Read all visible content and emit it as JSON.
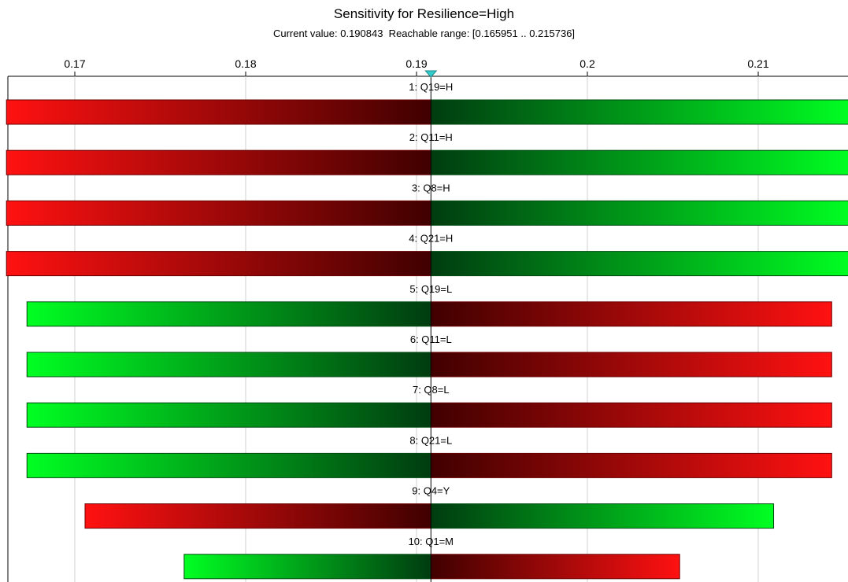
{
  "chart_data": {
    "type": "bar",
    "subtype": "tornado",
    "title": "Sensitivity for Resilience=High",
    "subtitle": "Current value: 0.190843  Reachable range: [0.165951 .. 0.215736]",
    "current_value": 0.190843,
    "reachable_range": [
      0.165951,
      0.215736
    ],
    "x_ticks": [
      "0.17",
      "0.18",
      "0.19",
      "0.2",
      "0.21"
    ],
    "xlim": [
      0.166,
      0.2155
    ],
    "grid": true,
    "colors": {
      "increase": "#00ff22",
      "decrease": "#ff1111",
      "marker": "#33cccc"
    },
    "bars": [
      {
        "label": "1: Q19=H",
        "low": 0.166,
        "high": 0.2155,
        "low_side": "decrease"
      },
      {
        "label": "2: Q11=H",
        "low": 0.166,
        "high": 0.2155,
        "low_side": "decrease"
      },
      {
        "label": "3: Q8=H",
        "low": 0.166,
        "high": 0.2155,
        "low_side": "decrease"
      },
      {
        "label": "4: Q21=H",
        "low": 0.166,
        "high": 0.2155,
        "low_side": "decrease"
      },
      {
        "label": "5: Q19=L",
        "low": 0.1672,
        "high": 0.2143,
        "low_side": "increase"
      },
      {
        "label": "6: Q11=L",
        "low": 0.1672,
        "high": 0.2143,
        "low_side": "increase"
      },
      {
        "label": "7: Q8=L",
        "low": 0.1672,
        "high": 0.2143,
        "low_side": "increase"
      },
      {
        "label": "8: Q21=L",
        "low": 0.1672,
        "high": 0.2143,
        "low_side": "increase"
      },
      {
        "label": "9: Q4=Y",
        "low": 0.1706,
        "high": 0.2109,
        "low_side": "decrease"
      },
      {
        "label": "10: Q1=M",
        "low": 0.1764,
        "high": 0.2054,
        "low_side": "increase"
      }
    ]
  }
}
